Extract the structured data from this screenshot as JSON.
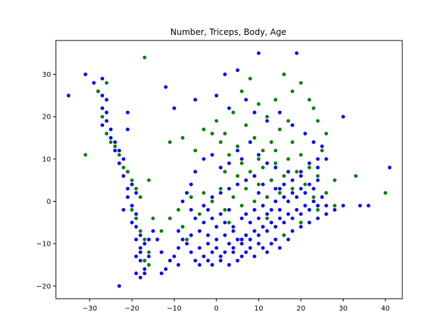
{
  "chart_data": {
    "type": "scatter",
    "title": "Number, Triceps, Body, Age",
    "xlabel": "",
    "ylabel": "",
    "xlim": [
      -38,
      44
    ],
    "ylim": [
      -23,
      38
    ],
    "x_ticks": [
      -30,
      -20,
      -10,
      0,
      10,
      20,
      30,
      40
    ],
    "y_ticks": [
      -20,
      -10,
      0,
      10,
      20,
      30
    ],
    "grid": false,
    "legend": "none",
    "series": [
      {
        "color": "#0000ff",
        "points": [
          [
            -35,
            25
          ],
          [
            -31,
            30
          ],
          [
            -29,
            28
          ],
          [
            -28,
            26
          ],
          [
            -27,
            29
          ],
          [
            -27,
            25
          ],
          [
            -26,
            24
          ],
          [
            -27,
            22
          ],
          [
            -26,
            21
          ],
          [
            -26,
            19
          ],
          [
            -25,
            17
          ],
          [
            -27,
            18
          ],
          [
            -25,
            15
          ],
          [
            -24,
            14
          ],
          [
            -24,
            12
          ],
          [
            -23,
            12
          ],
          [
            -21,
            21
          ],
          [
            -21,
            17
          ],
          [
            -22,
            10
          ],
          [
            -23,
            9
          ],
          [
            -21,
            7
          ],
          [
            -22,
            6
          ],
          [
            -20,
            4
          ],
          [
            -21,
            3
          ],
          [
            -19,
            2
          ],
          [
            -21,
            1
          ],
          [
            -20,
            -1
          ],
          [
            -22,
            -2
          ],
          [
            -19,
            -3
          ],
          [
            -20,
            -5
          ],
          [
            -19,
            -6
          ],
          [
            -18,
            -8
          ],
          [
            -19,
            -9
          ],
          [
            -18,
            -11
          ],
          [
            -19,
            -13
          ],
          [
            -18,
            -14
          ],
          [
            -17,
            -16
          ],
          [
            -18,
            -18
          ],
          [
            -17,
            -17
          ],
          [
            -23,
            -20
          ],
          [
            -19,
            -17
          ],
          [
            -18,
            -12
          ],
          [
            -17,
            -10
          ],
          [
            -16,
            -9
          ],
          [
            -16,
            -13
          ],
          [
            -15,
            -7
          ],
          [
            -13,
            -12
          ],
          [
            -14,
            -9
          ],
          [
            -12,
            -16
          ],
          [
            -13,
            -17
          ],
          [
            -11,
            -14
          ],
          [
            -10,
            -13
          ],
          [
            -9,
            -11
          ],
          [
            -8,
            -9
          ],
          [
            -9,
            -7
          ],
          [
            -7,
            -10
          ],
          [
            -6,
            -12
          ],
          [
            -5,
            -14
          ],
          [
            -4,
            -11
          ],
          [
            -3,
            -13
          ],
          [
            -2,
            -10
          ],
          [
            -1,
            -12
          ],
          [
            0,
            -11
          ],
          [
            1,
            -13
          ],
          [
            2,
            -12
          ],
          [
            3,
            -10
          ],
          [
            4,
            -11
          ],
          [
            5,
            -9
          ],
          [
            6,
            -10
          ],
          [
            7,
            -8
          ],
          [
            8,
            -9
          ],
          [
            9,
            -7
          ],
          [
            10,
            -8
          ],
          [
            11,
            -6
          ],
          [
            12,
            -7
          ],
          [
            13,
            -5
          ],
          [
            14,
            -6
          ],
          [
            15,
            -4
          ],
          [
            16,
            -5
          ],
          [
            17,
            -3
          ],
          [
            18,
            -4
          ],
          [
            19,
            -2
          ],
          [
            20,
            -3
          ],
          [
            21,
            -1
          ],
          [
            22,
            -2
          ],
          [
            23,
            0
          ],
          [
            24,
            -1
          ],
          [
            25,
            1
          ],
          [
            26,
            -1
          ],
          [
            28,
            -2
          ],
          [
            30,
            -1
          ],
          [
            34,
            -1
          ],
          [
            36,
            -1
          ],
          [
            41,
            8
          ],
          [
            30,
            20
          ],
          [
            19,
            35
          ],
          [
            10,
            35
          ],
          [
            5,
            31
          ],
          [
            2,
            30
          ],
          [
            -10,
            22
          ],
          [
            -12,
            27
          ],
          [
            -5,
            24
          ],
          [
            0,
            25
          ],
          [
            3,
            22
          ],
          [
            7,
            24
          ],
          [
            9,
            21
          ],
          [
            12,
            19
          ],
          [
            15,
            21
          ],
          [
            18,
            18
          ],
          [
            21,
            16
          ],
          [
            23,
            14
          ],
          [
            25,
            13
          ],
          [
            26,
            10
          ],
          [
            24,
            8
          ],
          [
            20,
            6
          ],
          [
            17,
            7
          ],
          [
            14,
            8
          ],
          [
            12,
            9
          ],
          [
            10,
            11
          ],
          [
            8,
            14
          ],
          [
            6,
            10
          ],
          [
            5,
            12
          ],
          [
            3,
            9
          ],
          [
            1,
            8
          ],
          [
            -1,
            11
          ],
          [
            -3,
            10
          ],
          [
            -5,
            7
          ],
          [
            -6,
            4
          ],
          [
            -7,
            2
          ],
          [
            -8,
            0
          ],
          [
            -6,
            -2
          ],
          [
            -5,
            -4
          ],
          [
            -3,
            -5
          ],
          [
            -2,
            -2
          ],
          [
            -1,
            -4
          ],
          [
            1,
            -3
          ],
          [
            2,
            -5
          ],
          [
            3,
            -2
          ],
          [
            4,
            -6
          ],
          [
            6,
            -4
          ],
          [
            7,
            -3
          ],
          [
            8,
            -5
          ],
          [
            9,
            -2
          ],
          [
            10,
            -4
          ],
          [
            11,
            -1
          ],
          [
            12,
            -3
          ],
          [
            13,
            -2
          ],
          [
            14,
            0
          ],
          [
            15,
            -2
          ],
          [
            16,
            1
          ],
          [
            17,
            0
          ],
          [
            18,
            2
          ],
          [
            19,
            1
          ],
          [
            20,
            3
          ],
          [
            21,
            2
          ],
          [
            22,
            4
          ],
          [
            23,
            3
          ],
          [
            24,
            5
          ],
          [
            15,
            3
          ],
          [
            13,
            5
          ],
          [
            11,
            4
          ],
          [
            9,
            6
          ],
          [
            7,
            5
          ],
          [
            5,
            4
          ],
          [
            3,
            3
          ],
          [
            1,
            2
          ],
          [
            -1,
            1
          ],
          [
            -3,
            -1
          ],
          [
            0,
            -6
          ],
          [
            2,
            -8
          ],
          [
            4,
            -7
          ],
          [
            6,
            -9
          ],
          [
            8,
            -11
          ],
          [
            10,
            -10
          ],
          [
            12,
            -12
          ],
          [
            14,
            -9
          ],
          [
            16,
            -8
          ],
          [
            18,
            -7
          ],
          [
            20,
            -6
          ],
          [
            22,
            -5
          ],
          [
            -4,
            -7
          ],
          [
            -2,
            -8
          ],
          [
            0,
            -9
          ],
          [
            -6,
            -8
          ],
          [
            -8,
            -6
          ],
          [
            4,
            -12
          ],
          [
            6,
            -13
          ],
          [
            -2,
            -14
          ],
          [
            -4,
            -15
          ],
          [
            -9,
            -15
          ],
          [
            24,
            -4
          ],
          [
            26,
            -3
          ],
          [
            11,
            -11
          ],
          [
            13,
            -10
          ],
          [
            15,
            -11
          ],
          [
            17,
            -9
          ],
          [
            9,
            -13
          ],
          [
            7,
            -12
          ],
          [
            5,
            -14
          ],
          [
            3,
            -15
          ],
          [
            1,
            -14
          ],
          [
            -1,
            -15
          ],
          [
            10,
            2
          ],
          [
            12,
            1
          ],
          [
            14,
            3
          ],
          [
            16,
            4
          ],
          [
            18,
            5
          ],
          [
            20,
            7
          ],
          [
            22,
            9
          ],
          [
            24,
            10
          ]
        ]
      },
      {
        "color": "#008000",
        "points": [
          [
            -31,
            11
          ],
          [
            -28,
            26
          ],
          [
            -26,
            28
          ],
          [
            -27,
            20
          ],
          [
            -26,
            16
          ],
          [
            -25,
            14
          ],
          [
            -24,
            13
          ],
          [
            -23,
            11
          ],
          [
            -22,
            8
          ],
          [
            -21,
            7
          ],
          [
            -20,
            5
          ],
          [
            -19,
            3
          ],
          [
            -18,
            1
          ],
          [
            -20,
            -2
          ],
          [
            -19,
            -4
          ],
          [
            -18,
            -7
          ],
          [
            -17,
            -9
          ],
          [
            -16,
            -12
          ],
          [
            -16,
            -15
          ],
          [
            -17,
            -14
          ],
          [
            -16,
            5
          ],
          [
            -15,
            -4
          ],
          [
            -13,
            -7
          ],
          [
            -11,
            -4
          ],
          [
            -9,
            -2
          ],
          [
            -8,
            -6
          ],
          [
            -7,
            -9
          ],
          [
            -6,
            1
          ],
          [
            -4,
            -3
          ],
          [
            -3,
            2
          ],
          [
            -1,
            0
          ],
          [
            1,
            3
          ],
          [
            2,
            -2
          ],
          [
            3,
            -5
          ],
          [
            4,
            1
          ],
          [
            5,
            6
          ],
          [
            6,
            -1
          ],
          [
            7,
            3
          ],
          [
            8,
            7
          ],
          [
            9,
            0
          ],
          [
            10,
            4
          ],
          [
            11,
            8
          ],
          [
            12,
            1
          ],
          [
            13,
            5
          ],
          [
            14,
            9
          ],
          [
            15,
            2
          ],
          [
            16,
            6
          ],
          [
            17,
            10
          ],
          [
            18,
            3
          ],
          [
            19,
            7
          ],
          [
            20,
            11
          ],
          [
            21,
            4
          ],
          [
            22,
            8
          ],
          [
            23,
            1
          ],
          [
            24,
            6
          ],
          [
            25,
            12
          ],
          [
            26,
            2
          ],
          [
            28,
            5
          ],
          [
            33,
            6
          ],
          [
            40,
            2
          ],
          [
            -17,
            34
          ],
          [
            -11,
            14
          ],
          [
            -8,
            15
          ],
          [
            -5,
            12
          ],
          [
            -3,
            17
          ],
          [
            0,
            19
          ],
          [
            2,
            16
          ],
          [
            4,
            21
          ],
          [
            6,
            26
          ],
          [
            8,
            29
          ],
          [
            10,
            23
          ],
          [
            12,
            20
          ],
          [
            14,
            24
          ],
          [
            16,
            30
          ],
          [
            18,
            26
          ],
          [
            20,
            28
          ],
          [
            22,
            24
          ],
          [
            24,
            19
          ],
          [
            26,
            16
          ],
          [
            23,
            22
          ],
          [
            17,
            19
          ],
          [
            15,
            17
          ],
          [
            13,
            14
          ],
          [
            11,
            12
          ],
          [
            9,
            15
          ],
          [
            7,
            18
          ],
          [
            5,
            13
          ],
          [
            3,
            11
          ],
          [
            1,
            14
          ],
          [
            -1,
            16
          ],
          [
            2,
            7
          ],
          [
            6,
            9
          ],
          [
            10,
            10
          ],
          [
            14,
            12
          ],
          [
            18,
            14
          ],
          [
            12,
            -4
          ],
          [
            16,
            -8
          ],
          [
            20,
            -5
          ],
          [
            24,
            -2
          ],
          [
            28,
            -1
          ]
        ]
      }
    ]
  }
}
